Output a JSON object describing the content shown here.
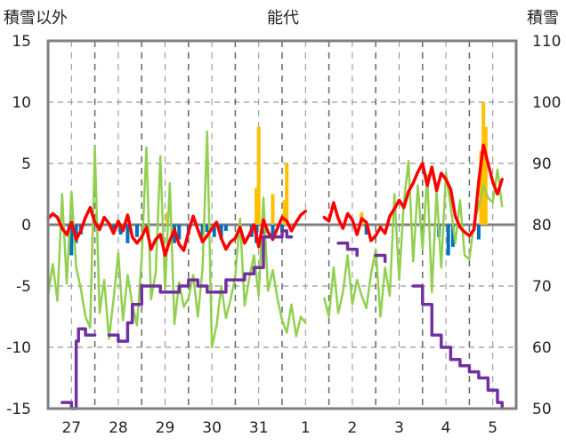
{
  "chart_data": {
    "type": "line",
    "title": "能代",
    "left_axis": {
      "label": "積雪以外",
      "range": [
        -15,
        15
      ],
      "ticks": [
        "-15",
        "-10",
        "-5",
        "0",
        "5",
        "10",
        "15"
      ]
    },
    "right_axis": {
      "label": "積雪",
      "range": [
        50,
        110
      ],
      "ticks": [
        "50",
        "60",
        "70",
        "80",
        "90",
        "100",
        "110"
      ]
    },
    "x_axis": {
      "range": [
        0,
        10
      ],
      "categories": [
        "27",
        "28",
        "29",
        "30",
        "31",
        "1",
        "2",
        "3",
        "4",
        "5"
      ]
    },
    "grid": {
      "vertical_dashed": true,
      "horizontal_dashed": true
    },
    "colors": {
      "temperature": "#ff0000",
      "sunshine": "#92d050",
      "snow_depth": "#7030a0",
      "precipitation": "#ffc000",
      "negative_bars": "#0070c0",
      "frame": "#808080",
      "zero_line": "#808080"
    },
    "series": [
      {
        "axis": "left",
        "kind": "line",
        "color_key": "temperature",
        "x": [
          0.0,
          0.1,
          0.2,
          0.3,
          0.4,
          0.5,
          0.6,
          0.7,
          0.8,
          0.9,
          1.0,
          1.1,
          1.2,
          1.3,
          1.4,
          1.5,
          1.6,
          1.7,
          1.8,
          1.9,
          2.0,
          2.1,
          2.2,
          2.3,
          2.4,
          2.5,
          2.6,
          2.7,
          2.8,
          2.9,
          3.0,
          3.1,
          3.2,
          3.3,
          3.4,
          3.5,
          3.6,
          3.7,
          3.8,
          3.9,
          4.0,
          4.1,
          4.2,
          4.3,
          4.4,
          4.5,
          4.6,
          4.7,
          4.8,
          4.9,
          5.0,
          5.1,
          5.2,
          5.3,
          5.4,
          5.5,
          5.9,
          6.0,
          6.1,
          6.2,
          6.3,
          6.4,
          6.5,
          6.6,
          6.7,
          6.8,
          6.9,
          7.0,
          7.1,
          7.2,
          7.3,
          7.4,
          7.5,
          7.6,
          7.7,
          7.8,
          7.9,
          8.0,
          8.1,
          8.2,
          8.3,
          8.4,
          8.5,
          8.6,
          8.7,
          8.8,
          8.9,
          9.0,
          9.1,
          9.2,
          9.3,
          9.4,
          9.5,
          9.6,
          9.7
        ],
        "y": [
          0.5,
          0.9,
          0.6,
          -0.3,
          -0.8,
          0.2,
          -1.2,
          -0.5,
          0.6,
          1.4,
          0.2,
          -0.4,
          0.6,
          0.1,
          -0.7,
          0.3,
          -0.5,
          0.8,
          -1.0,
          -1.5,
          -1.0,
          -0.2,
          -2.0,
          -1.2,
          -0.8,
          -2.5,
          -1.3,
          -0.4,
          -1.6,
          -2.1,
          -0.6,
          0.7,
          -0.4,
          -1.4,
          -0.9,
          -0.3,
          0.2,
          -1.1,
          -2.0,
          -1.4,
          -1.1,
          -0.2,
          -1.5,
          -0.8,
          0.0,
          -1.8,
          0.4,
          -0.6,
          -1.2,
          -0.3,
          0.6,
          0.3,
          -0.5,
          0.2,
          0.8,
          1.1,
          0.6,
          0.3,
          1.8,
          0.5,
          -0.3,
          0.9,
          0.4,
          -0.8,
          0.5,
          0.2,
          -1.3,
          -0.9,
          -0.2,
          -0.7,
          0.7,
          1.3,
          2.0,
          1.4,
          2.7,
          3.4,
          4.3,
          5.0,
          3.2,
          4.7,
          2.8,
          4.2,
          3.7,
          2.9,
          0.7,
          -0.2,
          -0.6,
          -0.9,
          -0.4,
          3.5,
          6.5,
          5.0,
          3.5,
          2.5,
          3.7
        ]
      },
      {
        "axis": "left",
        "kind": "line",
        "color_key": "sunshine",
        "x": [
          0.0,
          0.1,
          0.2,
          0.3,
          0.4,
          0.5,
          0.6,
          0.7,
          0.8,
          0.9,
          1.0,
          1.1,
          1.2,
          1.3,
          1.4,
          1.5,
          1.6,
          1.7,
          1.8,
          1.9,
          2.0,
          2.1,
          2.2,
          2.3,
          2.4,
          2.5,
          2.6,
          2.7,
          2.8,
          2.9,
          3.0,
          3.1,
          3.2,
          3.3,
          3.4,
          3.5,
          3.6,
          3.7,
          3.8,
          3.9,
          4.0,
          4.1,
          4.2,
          4.3,
          4.4,
          4.5,
          4.6,
          4.7,
          4.8,
          4.9,
          5.0,
          5.1,
          5.2,
          5.3,
          5.4,
          5.5,
          5.9,
          6.0,
          6.1,
          6.2,
          6.3,
          6.4,
          6.5,
          6.6,
          6.7,
          6.8,
          6.9,
          7.0,
          7.1,
          7.2,
          7.3,
          7.4,
          7.5,
          7.6,
          7.7,
          7.8,
          7.9,
          8.0,
          8.1,
          8.2,
          8.3,
          8.4,
          8.5,
          8.6,
          8.7,
          8.8,
          8.9,
          9.0,
          9.1,
          9.2,
          9.3,
          9.4,
          9.5,
          9.6,
          9.7
        ],
        "y": [
          -5.8,
          -3.2,
          -6.2,
          2.5,
          -4.8,
          2.7,
          -3.5,
          -5.2,
          -7.5,
          -8.4,
          6.3,
          -7.2,
          -4.5,
          -9.3,
          -6.1,
          -2.3,
          -7.8,
          -4.1,
          -6.5,
          -8.2,
          -2.8,
          6.3,
          -6.1,
          -3.9,
          5.6,
          -5.3,
          3.4,
          -8.1,
          -4.7,
          -6.7,
          -6.0,
          -4.1,
          -7.5,
          -3.6,
          7.6,
          -10.0,
          -8.2,
          -5.0,
          -7.6,
          -6.1,
          -4.2,
          0.5,
          -6.6,
          -4.3,
          -2.5,
          -5.8,
          2.2,
          -5.4,
          -3.7,
          -6.0,
          -7.8,
          -8.8,
          -6.5,
          -9.1,
          -7.5,
          -8.0,
          -6.0,
          -7.5,
          -3.5,
          -7.2,
          -5.5,
          -2.5,
          -6.5,
          -4.5,
          -5.8,
          -6.8,
          -4.0,
          -2.0,
          -7.5,
          -3.5,
          -5.8,
          2.5,
          -4.5,
          1.8,
          5.2,
          -3.0,
          3.2,
          -2.0,
          4.0,
          -5.5,
          2.8,
          -3.5,
          4.2,
          1.5,
          -1.5,
          2.0,
          -2.5,
          -2.8,
          0.2,
          1.5,
          3.2,
          2.2,
          1.8,
          4.5,
          1.5
        ]
      },
      {
        "axis": "right",
        "kind": "step",
        "color_key": "snow_depth",
        "x": [
          0.0,
          0.3,
          0.5,
          0.6,
          0.65,
          0.8,
          1.0,
          1.3,
          1.5,
          1.55,
          1.7,
          1.8,
          2.0,
          2.2,
          2.4,
          2.6,
          2.8,
          3.0,
          3.2,
          3.4,
          3.6,
          3.8,
          4.0,
          4.2,
          4.4,
          4.6,
          4.8,
          5.0,
          5.1,
          5.2,
          5.5,
          5.9,
          6.2,
          6.4,
          6.6,
          7.0,
          7.2,
          7.5,
          7.8,
          8.0,
          8.2,
          8.4,
          8.6,
          8.8,
          9.0,
          9.2,
          9.4,
          9.6,
          9.7
        ],
        "y": [
          51,
          51,
          50,
          61,
          63,
          62,
          62,
          62,
          61,
          61,
          64,
          67,
          70,
          70,
          69,
          69,
          70,
          71,
          70,
          69,
          69,
          71,
          71,
          72,
          73,
          78,
          78,
          79,
          78,
          78,
          78,
          78,
          77,
          76,
          75,
          75,
          74,
          74,
          70,
          67,
          62,
          60,
          58,
          57,
          56,
          55,
          53,
          51,
          50
        ]
      },
      {
        "axis": "left",
        "kind": "bar",
        "color_key": "precipitation",
        "x": [
          2.55,
          4.45,
          4.5,
          4.8,
          5.05,
          5.1,
          6.7,
          9.25,
          9.3,
          9.35
        ],
        "y": [
          1.0,
          3.0,
          8.0,
          2.5,
          2.0,
          5.0,
          1.0,
          6.0,
          10.0,
          8.0
        ]
      },
      {
        "axis": "left",
        "kind": "bar",
        "color_key": "negative_bars",
        "x": [
          0.45,
          0.5,
          0.6,
          0.7,
          1.4,
          1.55,
          1.7,
          1.9,
          2.7,
          2.8,
          3.0,
          3.3,
          3.4,
          3.55,
          3.7,
          3.8,
          4.35,
          4.45,
          4.6,
          4.8,
          5.0,
          6.8,
          8.35,
          8.55,
          8.65,
          9.2
        ],
        "y": [
          -1.0,
          -2.5,
          -1.5,
          -0.8,
          -0.6,
          -0.8,
          -1.5,
          -1.0,
          -1.5,
          -1.2,
          -0.8,
          -1.2,
          -0.6,
          -1.0,
          -1.2,
          -0.5,
          -1.0,
          -1.5,
          -0.8,
          -1.0,
          -0.6,
          -0.8,
          -1.0,
          -2.5,
          -1.8,
          -1.2
        ]
      }
    ]
  }
}
